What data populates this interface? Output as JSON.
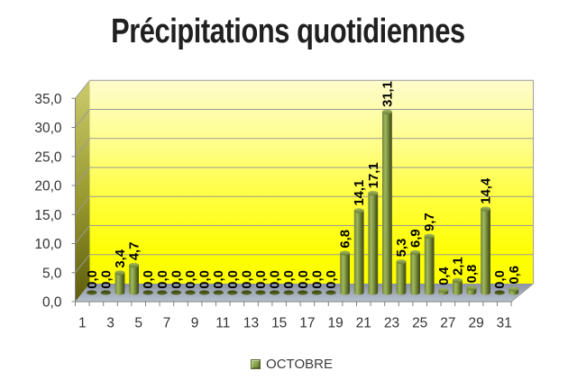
{
  "chart_data": {
    "type": "bar",
    "style": "3d-cylinder",
    "title": "Précipitations quotidiennes",
    "categories": [
      1,
      2,
      3,
      4,
      5,
      6,
      7,
      8,
      9,
      10,
      11,
      12,
      13,
      14,
      15,
      16,
      17,
      18,
      19,
      20,
      21,
      22,
      23,
      24,
      25,
      26,
      27,
      28,
      29,
      30,
      31
    ],
    "series": [
      {
        "name": "OCTOBRE",
        "values": [
          0.0,
          0.0,
          3.4,
          4.7,
          0.0,
          0.0,
          0.0,
          0.0,
          0.0,
          0.0,
          0.0,
          0.0,
          0.0,
          0.0,
          0.0,
          0.0,
          0.0,
          0.0,
          6.8,
          14.1,
          17.1,
          31.1,
          5.3,
          6.9,
          9.7,
          0.4,
          2.1,
          0.8,
          14.4,
          0.0,
          0.6
        ]
      }
    ],
    "data_labels": [
      "0,0",
      "0,0",
      "3,4",
      "4,7",
      "0,0",
      "0,0",
      "0,0",
      "0,0",
      "0,0",
      "0,0",
      "0,0",
      "0,0",
      "0,0",
      "0,0",
      "0,0",
      "0,0",
      "0,0",
      "0,0",
      "6,8",
      "14,1",
      "17,1",
      "31,1",
      "5,3",
      "6,9",
      "9,7",
      "0,4",
      "2,1",
      "0,8",
      "14,4",
      "0,0",
      "0,6"
    ],
    "xlabel": "",
    "ylabel": "",
    "x_tick_labels": [
      "1",
      "3",
      "5",
      "7",
      "9",
      "11",
      "13",
      "15",
      "17",
      "19",
      "21",
      "23",
      "25",
      "27",
      "29",
      "31"
    ],
    "x_tick_step": 2,
    "y_ticks": [
      0,
      5,
      10,
      15,
      20,
      25,
      30,
      35
    ],
    "y_tick_labels": [
      "0,0",
      "5,0",
      "10,0",
      "15,0",
      "20,0",
      "25,0",
      "30,0",
      "35,0"
    ],
    "ylim": [
      0,
      35
    ],
    "grid": true,
    "legend_position": "bottom",
    "legend_entries": [
      "OCTOBRE"
    ],
    "decimal_separator": ",",
    "colors": {
      "bar_base": "#79903c",
      "bar_highlight": "#9fb65e",
      "bar_dark_edge": "#424f19",
      "zero_marker_dark": "#46541b",
      "back_wall_top": "#fefcca",
      "back_wall_bottom": "#fefe00",
      "side_wall_top": "#cbcb6d",
      "side_wall_bottom": "#5d5d0e",
      "floor_back": "#8b93a3",
      "floor_front": "#b8c1ce",
      "gridline": "#9a9a9a",
      "axis_line": "#808080",
      "tick_label": "#333333",
      "data_label": "#000000",
      "title_color": "#222222",
      "legend_text": "#3a3a3a"
    }
  }
}
